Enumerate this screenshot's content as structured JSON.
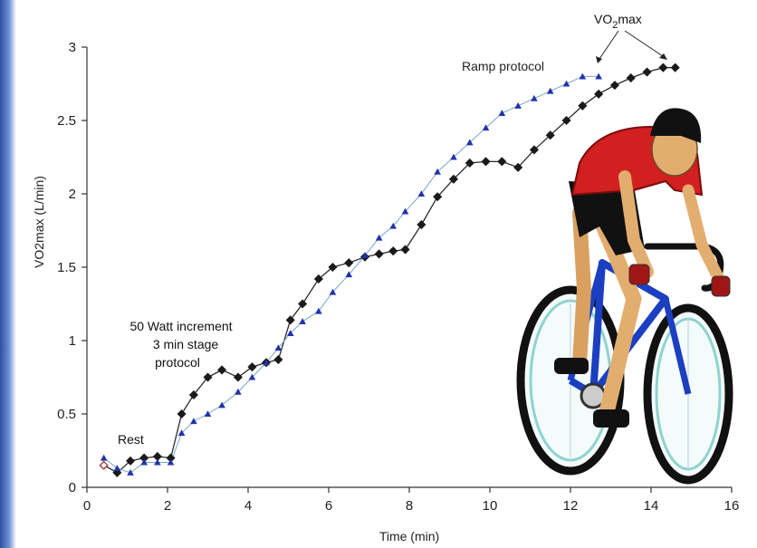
{
  "chart_data": {
    "type": "line",
    "ylabel": "VO2max (L/min)",
    "xlabel": "Time (min)",
    "xlim": [
      0,
      16
    ],
    "ylim": [
      0,
      3
    ],
    "xticks": [
      "0",
      "2",
      "4",
      "6",
      "8",
      "10",
      "12",
      "14",
      "16"
    ],
    "yticks": [
      "0",
      "0.5",
      "1",
      "1.5",
      "2",
      "2.5",
      "3"
    ],
    "grid": false,
    "series": [
      {
        "color": "#1a1a1a",
        "marker": "diamond",
        "x": [
          0.42,
          0.75,
          1.08,
          1.42,
          1.75,
          2.08,
          2.35,
          2.65,
          3.0,
          3.35,
          3.75,
          4.1,
          4.45,
          4.75,
          5.05,
          5.35,
          5.75,
          6.1,
          6.5,
          6.9,
          7.25,
          7.6,
          7.9,
          8.3,
          8.7,
          9.1,
          9.5,
          9.9,
          10.3,
          10.7,
          11.1,
          11.5,
          11.9,
          12.3,
          12.7,
          13.1,
          13.5,
          13.9,
          14.3,
          14.6
        ],
        "y": [
          0.15,
          0.1,
          0.18,
          0.2,
          0.21,
          0.2,
          0.5,
          0.63,
          0.75,
          0.8,
          0.75,
          0.82,
          0.85,
          0.87,
          1.14,
          1.25,
          1.42,
          1.5,
          1.53,
          1.57,
          1.59,
          1.61,
          1.62,
          1.79,
          1.98,
          2.1,
          2.21,
          2.22,
          2.22,
          2.18,
          2.3,
          2.4,
          2.5,
          2.6,
          2.68,
          2.74,
          2.79,
          2.83,
          2.86,
          2.86
        ]
      },
      {
        "color": "#2233aa",
        "marker": "triangle",
        "x": [
          0.42,
          0.75,
          1.08,
          1.42,
          1.75,
          2.08,
          2.35,
          2.65,
          3.0,
          3.35,
          3.75,
          4.1,
          4.45,
          4.75,
          5.05,
          5.35,
          5.75,
          6.1,
          6.5,
          6.9,
          7.25,
          7.6,
          7.9,
          8.3,
          8.7,
          9.1,
          9.5,
          9.9,
          10.3,
          10.7,
          11.1,
          11.5,
          11.9,
          12.3,
          12.7
        ],
        "y": [
          0.2,
          0.13,
          0.1,
          0.17,
          0.17,
          0.17,
          0.37,
          0.45,
          0.5,
          0.56,
          0.65,
          0.75,
          0.85,
          0.95,
          1.05,
          1.13,
          1.2,
          1.33,
          1.45,
          1.58,
          1.7,
          1.78,
          1.88,
          2.0,
          2.15,
          2.25,
          2.35,
          2.45,
          2.55,
          2.6,
          2.65,
          2.7,
          2.75,
          2.8,
          2.8
        ]
      }
    ],
    "annotations": [
      {
        "text": "Ramp protocol"
      },
      {
        "text_main": "VO",
        "text_sub": "2",
        "text_end": "max"
      },
      {
        "lines": [
          "50 Watt increment",
          "3 min stage",
          "protocol"
        ]
      },
      {
        "text": "Rest"
      }
    ]
  }
}
